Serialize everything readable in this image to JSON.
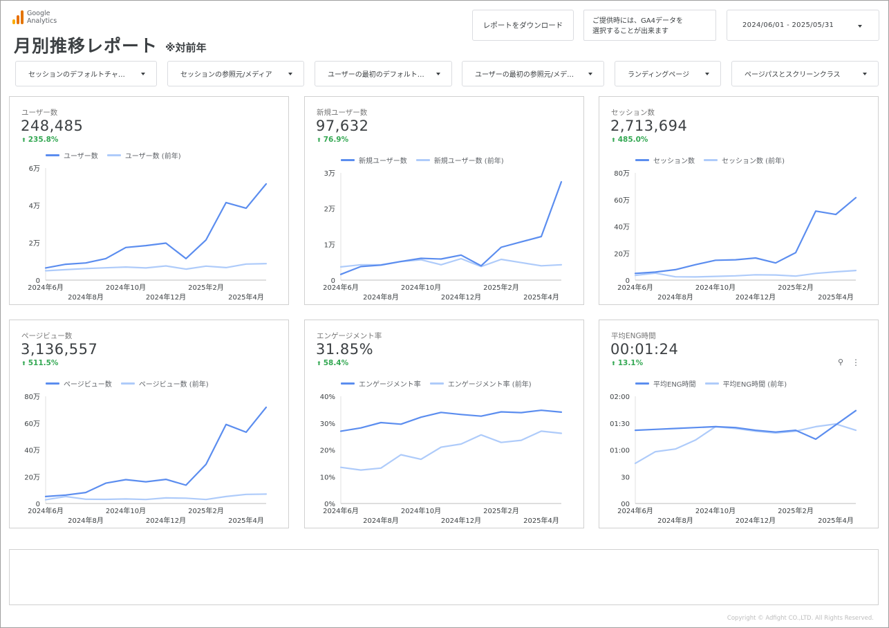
{
  "brand": {
    "line1": "Google",
    "line2": "Analytics",
    "colors": [
      "#f9ab00",
      "#e37400",
      "#e8710a"
    ]
  },
  "header": {
    "title": "月別推移レポート",
    "subtitle": "※対前年",
    "download_label": "レポートをダウンロード",
    "note_line1": "ご提供時には、GA4データを",
    "note_line2": "選択することが出来ます",
    "date_range": "2024/06/01 - 2025/05/31"
  },
  "filters": [
    {
      "label": "セッションのデフォルトチャ…"
    },
    {
      "label": "セッションの参照元/メディア"
    },
    {
      "label": "ユーザーの最初のデフォルト…"
    },
    {
      "label": "ユーザーの最初の参照元/メデ…"
    },
    {
      "label": "ランディングページ"
    },
    {
      "label": "ページパスとスクリーンクラス"
    }
  ],
  "colors": {
    "current": "#5b8def",
    "previous": "#aecbfa",
    "positive": "#34a853"
  },
  "cards": [
    {
      "label": "ユーザー数",
      "value": "248,485",
      "change": "235.8%",
      "legend_current": "ユーザー数",
      "legend_previous": "ユーザー数 (前年)",
      "chart_data": {
        "type": "line",
        "x": [
          "2024-06",
          "2024-07",
          "2024-08",
          "2024-09",
          "2024-10",
          "2024-11",
          "2024-12",
          "2025-01",
          "2025-02",
          "2025-03",
          "2025-04",
          "2025-05"
        ],
        "x_ticks_top": [
          "2024年6月",
          "2024年10月",
          "2025年2月"
        ],
        "x_ticks_bottom": [
          "2024年8月",
          "2024年12月",
          "2025年4月"
        ],
        "y_ticks": [
          "0",
          "2万",
          "4万",
          "6万"
        ],
        "ylim": [
          0,
          60000
        ],
        "series": [
          {
            "name": "ユーザー数",
            "values": [
              6500,
              8500,
              9200,
              11500,
              17500,
              18500,
              19800,
              11500,
              21500,
              41500,
              38500,
              51500
            ]
          },
          {
            "name": "ユーザー数 (前年)",
            "values": [
              5000,
              5600,
              6200,
              6600,
              7000,
              6500,
              7600,
              5900,
              7500,
              6700,
              8600,
              8800
            ]
          }
        ]
      }
    },
    {
      "label": "新規ユーザー数",
      "value": "97,632",
      "change": "76.9%",
      "legend_current": "新規ユーザー数",
      "legend_previous": "新規ユーザー数 (前年)",
      "chart_data": {
        "type": "line",
        "x": [
          "2024-06",
          "2024-07",
          "2024-08",
          "2024-09",
          "2024-10",
          "2024-11",
          "2024-12",
          "2025-01",
          "2025-02",
          "2025-03",
          "2025-04",
          "2025-05"
        ],
        "x_ticks_top": [
          "2024年6月",
          "2024年10月",
          "2025年2月"
        ],
        "x_ticks_bottom": [
          "2024年8月",
          "2024年12月",
          "2025年4月"
        ],
        "y_ticks": [
          "0",
          "1万",
          "2万",
          "3万"
        ],
        "ylim": [
          0,
          30000
        ],
        "series": [
          {
            "name": "新規ユーザー数",
            "values": [
              1600,
              3800,
              4200,
              5200,
              6100,
              5900,
              7000,
              4000,
              9200,
              10700,
              12200,
              27500
            ]
          },
          {
            "name": "新規ユーザー数 (前年)",
            "values": [
              3700,
              4300,
              4300,
              5200,
              5700,
              4300,
              6000,
              3800,
              5800,
              4900,
              4000,
              4300
            ]
          }
        ]
      }
    },
    {
      "label": "セッション数",
      "value": "2,713,694",
      "change": "485.0%",
      "legend_current": "セッション数",
      "legend_previous": "セッション数 (前年)",
      "chart_data": {
        "type": "line",
        "x": [
          "2024-06",
          "2024-07",
          "2024-08",
          "2024-09",
          "2024-10",
          "2024-11",
          "2024-12",
          "2025-01",
          "2025-02",
          "2025-03",
          "2025-04",
          "2025-05"
        ],
        "x_ticks_top": [
          "2024年6月",
          "2024年10月",
          "2025年2月"
        ],
        "x_ticks_bottom": [
          "2024年8月",
          "2024年12月",
          "2025年4月"
        ],
        "y_ticks": [
          "0",
          "20万",
          "40万",
          "60万",
          "80万"
        ],
        "ylim": [
          0,
          800000
        ],
        "series": [
          {
            "name": "セッション数",
            "values": [
              50000,
              60000,
              78000,
              115000,
              148000,
              152000,
              165000,
              128000,
              205000,
              515000,
              490000,
              615000
            ]
          },
          {
            "name": "セッション数 (前年)",
            "values": [
              35000,
              52000,
              25000,
              24000,
              28000,
              32000,
              40000,
              38000,
              30000,
              50000,
              62000,
              72000
            ]
          }
        ]
      }
    },
    {
      "label": "ページビュー数",
      "value": "3,136,557",
      "change": "511.5%",
      "legend_current": "ページビュー数",
      "legend_previous": "ページビュー数 (前年)",
      "chart_data": {
        "type": "line",
        "x": [
          "2024-06",
          "2024-07",
          "2024-08",
          "2024-09",
          "2024-10",
          "2024-11",
          "2024-12",
          "2025-01",
          "2025-02",
          "2025-03",
          "2025-04",
          "2025-05"
        ],
        "x_ticks_top": [
          "2024年6月",
          "2024年10月",
          "2025年2月"
        ],
        "x_ticks_bottom": [
          "2024年8月",
          "2024年12月",
          "2025年4月"
        ],
        "y_ticks": [
          "0",
          "20万",
          "40万",
          "60万",
          "80万"
        ],
        "ylim": [
          0,
          800000
        ],
        "series": [
          {
            "name": "ページビュー数",
            "values": [
              52000,
              63000,
              82000,
              152000,
              178000,
              162000,
              180000,
              137000,
              292000,
              590000,
              532000,
              718000
            ]
          },
          {
            "name": "ページビュー数 (前年)",
            "values": [
              28000,
              52000,
              32000,
              31000,
              34000,
              30000,
              42000,
              40000,
              30000,
              52000,
              68000,
              70000
            ]
          }
        ]
      }
    },
    {
      "label": "エンゲージメント率",
      "value": "31.85%",
      "change": "58.4%",
      "legend_current": "エンゲージメント率",
      "legend_previous": "エンゲージメント率 (前年)",
      "chart_data": {
        "type": "line",
        "x": [
          "2024-06",
          "2024-07",
          "2024-08",
          "2024-09",
          "2024-10",
          "2024-11",
          "2024-12",
          "2025-01",
          "2025-02",
          "2025-03",
          "2025-04",
          "2025-05"
        ],
        "x_ticks_top": [
          "2024年6月",
          "2024年10月",
          "2025年2月"
        ],
        "x_ticks_bottom": [
          "2024年8月",
          "2024年12月",
          "2025年4月"
        ],
        "y_ticks": [
          "0%",
          "10%",
          "20%",
          "30%",
          "40%"
        ],
        "ylim": [
          0,
          40
        ],
        "series": [
          {
            "name": "エンゲージメント率",
            "values": [
              27,
              28.2,
              30.2,
              29.6,
              32.2,
              34,
              33.2,
              32.6,
              34.2,
              33.9,
              34.8,
              34.1
            ]
          },
          {
            "name": "エンゲージメント率 (前年)",
            "values": [
              13.5,
              12.5,
              13.2,
              18.2,
              16.5,
              21,
              22.2,
              25.6,
              22.8,
              23.6,
              27,
              26.2
            ]
          }
        ]
      }
    },
    {
      "label": "平均ENG時間",
      "value": "00:01:24",
      "change": "13.1%",
      "legend_current": "平均ENG時間",
      "legend_previous": "平均ENG時間 (前年)",
      "chart_data": {
        "type": "line",
        "x": [
          "2024-06",
          "2024-07",
          "2024-08",
          "2024-09",
          "2024-10",
          "2024-11",
          "2024-12",
          "2025-01",
          "2025-02",
          "2025-03",
          "2025-04",
          "2025-05"
        ],
        "x_ticks_top": [
          "2024年6月",
          "2024年10月",
          "2025年2月"
        ],
        "x_ticks_bottom": [
          "2024年8月",
          "2024年12月",
          "2025年4月"
        ],
        "y_ticks": [
          "00",
          "30",
          "01:00",
          "01:30",
          "02:00"
        ],
        "ylim": [
          0,
          120
        ],
        "series": [
          {
            "name": "平均ENG時間",
            "values": [
              82,
              83,
              84,
              85,
              86,
              85,
              82,
              80,
              82,
              72,
              88,
              104
            ]
          },
          {
            "name": "平均ENG時間 (前年)",
            "values": [
              45,
              58,
              61,
              71,
              86,
              84,
              81,
              79,
              81,
              86,
              89,
              82
            ]
          }
        ]
      }
    }
  ],
  "footer": {
    "copyright": "Copyright © Adfight CO.,LTD. All Rights Reserved."
  }
}
